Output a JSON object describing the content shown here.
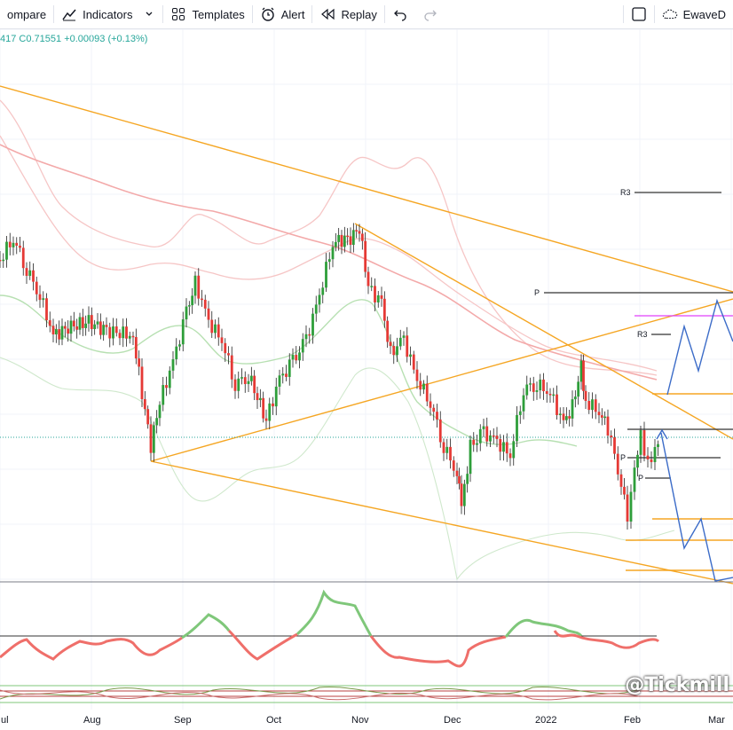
{
  "toolbar": {
    "compare_label": "ompare",
    "indicators_label": "Indicators",
    "templates_label": "Templates",
    "alert_label": "Alert",
    "replay_label": "Replay",
    "account_label": "EwaveD"
  },
  "price": {
    "prefix": "417",
    "close": "C0.71551",
    "change": "+0.00093 (+0.13%)"
  },
  "levels": {
    "r3_upper": "R3",
    "p_upper": "P",
    "r3_lower": "R3",
    "p_mid": "P",
    "p_low": "P"
  },
  "xaxis": [
    "ul",
    "Aug",
    "Sep",
    "Oct",
    "Nov",
    "Dec",
    "2022",
    "Feb",
    "Mar"
  ],
  "watermark": "@Tickmill",
  "colors": {
    "bull": "#26a69a",
    "candle_up": "#2e9e3a",
    "candle_down": "#e53935",
    "trendline": "#f5a623",
    "projection": "#3c6cc8",
    "pivot_pink": "#e040fb"
  }
}
